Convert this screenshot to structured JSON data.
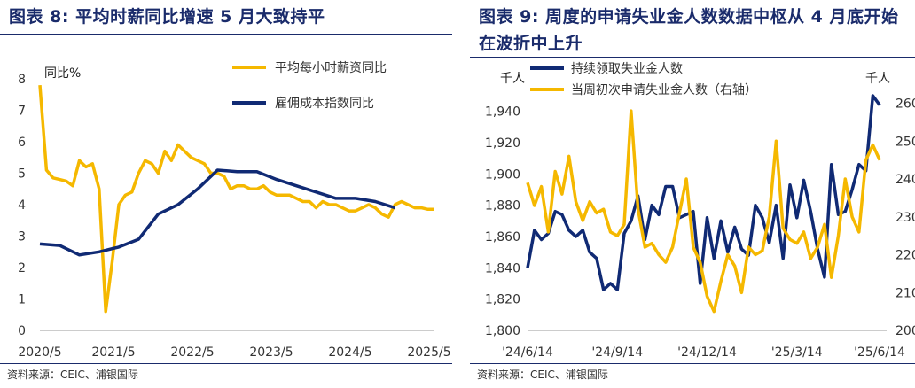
{
  "left": {
    "figure_label": "图表 8:",
    "title": "平均时薪同比增速 5 月大致持平",
    "source": "资料来源：CEIC、浦银国际"
  },
  "right": {
    "figure_label": "图表 9:",
    "title": "周度的申请失业金人数数据中枢从 4 月底开始在波折中上升",
    "source": "资料来源：CEIC、浦银国际"
  },
  "colors": {
    "navy": "#102a74",
    "gold": "#f5b800",
    "title": "#1a2b6b"
  },
  "chart_data": [
    {
      "type": "line",
      "ylabel": "同比%",
      "ylim": [
        0,
        8
      ],
      "y_ticks": [
        "0",
        "1",
        "2",
        "3",
        "4",
        "5",
        "6",
        "7",
        "8"
      ],
      "x_ticks": [
        "2020/5",
        "2021/5",
        "2022/5",
        "2023/5",
        "2024/5",
        "2025/5"
      ],
      "x_range": [
        0,
        60
      ],
      "grid": false,
      "legend": "top-right",
      "series": [
        {
          "name": "平均每小时薪资同比",
          "color": "#f5b800",
          "x": [
            0,
            1,
            2,
            3,
            4,
            5,
            6,
            7,
            8,
            9,
            10,
            11,
            12,
            13,
            14,
            15,
            16,
            17,
            18,
            19,
            20,
            21,
            22,
            23,
            24,
            25,
            26,
            27,
            28,
            29,
            30,
            31,
            32,
            33,
            34,
            35,
            36,
            37,
            38,
            39,
            40,
            41,
            42,
            43,
            44,
            45,
            46,
            47,
            48,
            49,
            50,
            51,
            52,
            53,
            54,
            55,
            56,
            57,
            58,
            59,
            60
          ],
          "values": [
            7.8,
            5.1,
            4.85,
            4.8,
            4.75,
            4.6,
            5.4,
            5.2,
            5.3,
            4.5,
            0.6,
            2.2,
            4.0,
            4.3,
            4.4,
            5.0,
            5.4,
            5.3,
            5.0,
            5.7,
            5.4,
            5.9,
            5.7,
            5.5,
            5.4,
            5.3,
            5.0,
            5.0,
            4.9,
            4.5,
            4.6,
            4.6,
            4.5,
            4.5,
            4.6,
            4.4,
            4.3,
            4.3,
            4.3,
            4.2,
            4.1,
            4.1,
            3.9,
            4.1,
            4.0,
            4.0,
            3.9,
            3.8,
            3.8,
            3.9,
            4.0,
            3.9,
            3.7,
            3.6,
            4.0,
            4.1,
            4.0,
            3.9,
            3.9,
            3.85,
            3.85
          ]
        },
        {
          "name": "雇佣成本指数同比",
          "color": "#102a74",
          "x": [
            0,
            3,
            6,
            9,
            12,
            15,
            18,
            21,
            24,
            27,
            30,
            33,
            36,
            39,
            42,
            45,
            48,
            51,
            54
          ],
          "values": [
            2.75,
            2.7,
            2.4,
            2.5,
            2.65,
            2.9,
            3.7,
            4.0,
            4.5,
            5.1,
            5.05,
            5.05,
            4.8,
            4.6,
            4.4,
            4.2,
            4.2,
            4.1,
            3.9
          ]
        }
      ]
    },
    {
      "type": "line",
      "ylabel_left": "千人",
      "ylabel_right": "千人",
      "ylim_left": [
        1800,
        1950
      ],
      "ylim_right": [
        200,
        262
      ],
      "y_ticks_left": [
        "1,800",
        "1,820",
        "1,840",
        "1,860",
        "1,880",
        "1,900",
        "1,920",
        "1,940"
      ],
      "y_ticks_right": [
        "200",
        "210",
        "220",
        "230",
        "240",
        "250",
        "260"
      ],
      "x_ticks": [
        "'24/6/14",
        "'24/9/14",
        "'24/12/14",
        "'25/3/14",
        "'25/6/14"
      ],
      "x_range": [
        0,
        52
      ],
      "grid": false,
      "legend": "top",
      "series": [
        {
          "name": "持续领取失业金人数",
          "axis": "left",
          "color": "#102a74",
          "values": [
            1840,
            1864,
            1858,
            1862,
            1876,
            1874,
            1864,
            1860,
            1864,
            1850,
            1846,
            1826,
            1830,
            1826,
            1862,
            1870,
            1886,
            1858,
            1880,
            1874,
            1892,
            1892,
            1872,
            1874,
            1876,
            1830,
            1872,
            1846,
            1870,
            1850,
            1866,
            1852,
            1848,
            1880,
            1872,
            1856,
            1880,
            1846,
            1893,
            1872,
            1896,
            1876,
            1852,
            1834,
            1906,
            1874,
            1876,
            1890,
            1906,
            1902,
            1950,
            1944
          ]
        },
        {
          "name": "当周初次申请失业金人数（右轴）",
          "axis": "right",
          "color": "#f5b800",
          "values": [
            239,
            233,
            238,
            226,
            242,
            236,
            246,
            234,
            229,
            234,
            231,
            232,
            226,
            225,
            228,
            258,
            232,
            222,
            223,
            220,
            218,
            222,
            231,
            240,
            222,
            218,
            209,
            205,
            213,
            220,
            217,
            210,
            222,
            220,
            221,
            230,
            250,
            227,
            224,
            223,
            226,
            219,
            222,
            228,
            214,
            225,
            240,
            230,
            226,
            245,
            249,
            245
          ]
        }
      ]
    }
  ]
}
